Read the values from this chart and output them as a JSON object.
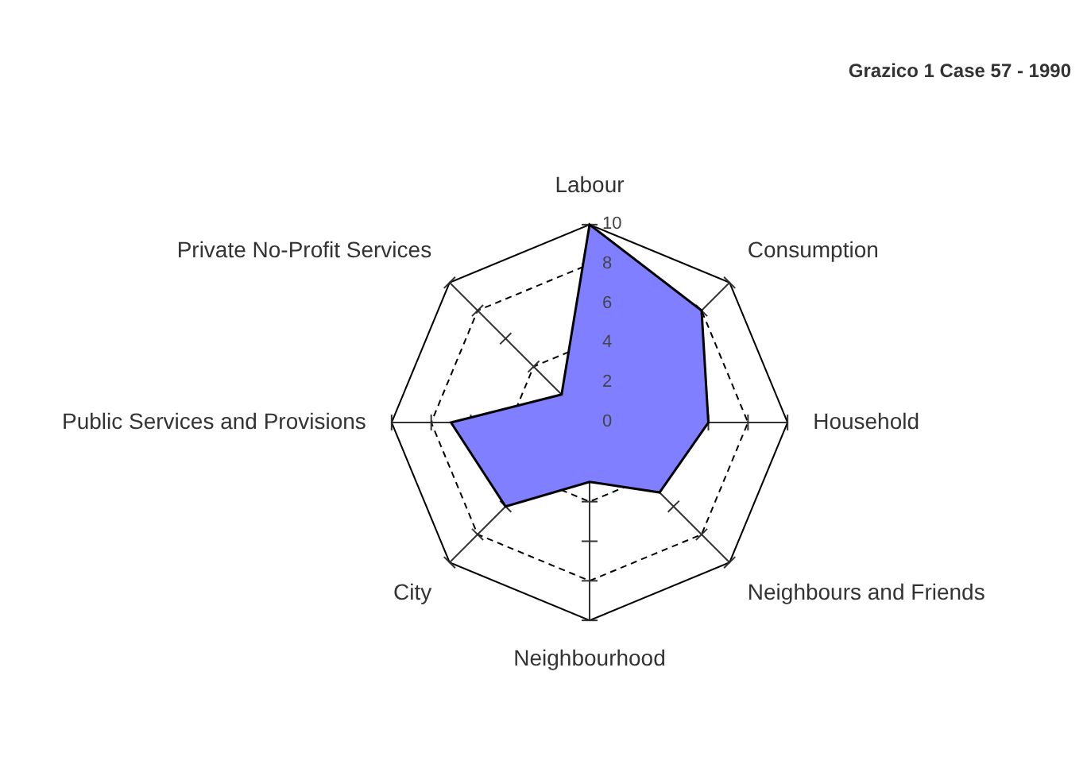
{
  "chart_data": {
    "type": "radar",
    "title": "Grazico 1 Case 57 - 1990",
    "categories": [
      "Labour",
      "Consumption",
      "Household",
      "Neighbours and Friends",
      "Neighbourhood",
      "City",
      "Public Services and Provisions",
      "Private No-Profit Services"
    ],
    "series": [
      {
        "color": "#7f7fff",
        "values": [
          10,
          8,
          6,
          5,
          3,
          6,
          7,
          2
        ]
      }
    ],
    "ylim": [
      0,
      10
    ],
    "yticks": [
      0,
      2,
      4,
      6,
      8,
      10
    ],
    "grid": true,
    "legend": false
  }
}
